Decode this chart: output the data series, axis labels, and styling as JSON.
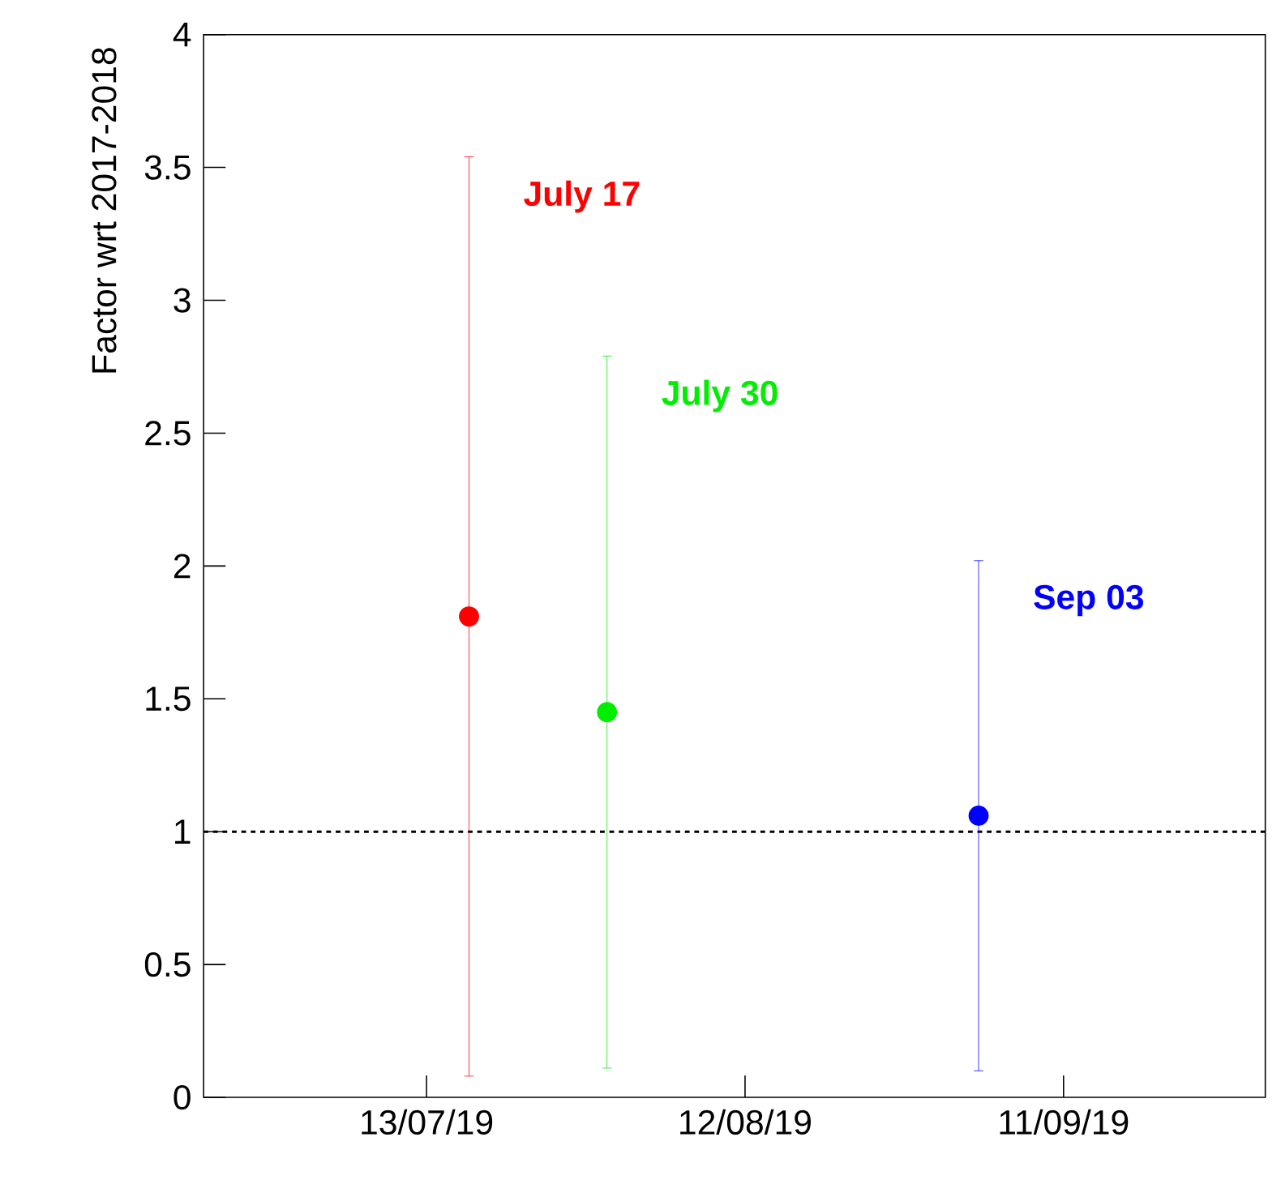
{
  "chart_data": {
    "type": "scatter",
    "ylabel": "Factor wrt 2017-2018",
    "xlim": [
      "2019-06-22",
      "2019-09-30"
    ],
    "xticks": [
      {
        "value": "2019-07-13",
        "label": "13/07/19"
      },
      {
        "value": "2019-08-12",
        "label": "12/08/19"
      },
      {
        "value": "2019-09-11",
        "label": "11/09/19"
      }
    ],
    "ylim": [
      0,
      4
    ],
    "yticks": [
      0,
      0.5,
      1,
      1.5,
      2,
      2.5,
      3,
      3.5,
      4
    ],
    "grid": false,
    "ref_lines": [
      {
        "axis": "y",
        "value": 1,
        "color": "#000000",
        "line_style": "dashed"
      }
    ],
    "series": [
      {
        "name": "July 17",
        "color": "#ff0000",
        "x": [
          "2019-07-17"
        ],
        "values": [
          1.81
        ],
        "errors": [
          1.73
        ]
      },
      {
        "name": "July 30",
        "color": "#00ee00",
        "x": [
          "2019-07-30"
        ],
        "values": [
          1.45
        ],
        "errors": [
          1.34
        ]
      },
      {
        "name": "Sep 03",
        "color": "#0000ff",
        "x": [
          "2019-09-03"
        ],
        "values": [
          1.06
        ],
        "errors": [
          0.96
        ]
      }
    ]
  }
}
